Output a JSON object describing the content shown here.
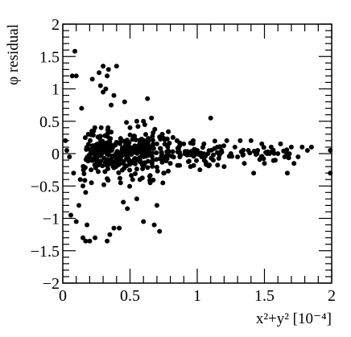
{
  "chart_data": {
    "type": "scatter",
    "title": "",
    "xlabel": "x²+y² [10⁻⁴]",
    "ylabel": "φ residual",
    "xlim": [
      0,
      2
    ],
    "ylim": [
      -2,
      2
    ],
    "xticks": [
      0,
      0.5,
      1,
      1.5,
      2
    ],
    "xtick_labels": [
      "0",
      "0.5",
      "1",
      "1.5",
      "2"
    ],
    "yticks": [
      -2,
      -1.5,
      -1,
      -0.5,
      0,
      0.5,
      1,
      1.5,
      2
    ],
    "ytick_labels": [
      "−2",
      "−1.5",
      "−1",
      "−0.5",
      "0",
      "0.5",
      "1",
      "1.5",
      "2"
    ],
    "grid": false,
    "legend": "none",
    "marker_color": "#000000",
    "series": [
      {
        "points": [
          [
            0.02,
            0.2
          ],
          [
            0.03,
            0.05
          ],
          [
            0.05,
            -0.05
          ],
          [
            0.08,
            -0.3
          ],
          [
            0.06,
            -0.95
          ],
          [
            0.1,
            -1.05
          ],
          [
            0.07,
            1.2
          ],
          [
            0.1,
            1.2
          ],
          [
            0.09,
            1.58
          ],
          [
            0.13,
            -0.4
          ],
          [
            0.12,
            -0.8
          ],
          [
            0.15,
            -0.5
          ],
          [
            0.14,
            0.7
          ],
          [
            0.17,
            -0.6
          ],
          [
            0.18,
            -1.1
          ],
          [
            0.15,
            -1.3
          ],
          [
            0.17,
            -1.35
          ],
          [
            0.2,
            -1.35
          ],
          [
            0.24,
            -1.3
          ],
          [
            0.19,
            0.3
          ],
          [
            0.21,
            -0.25
          ],
          [
            0.23,
            0.35
          ],
          [
            0.25,
            0.0
          ],
          [
            0.22,
            1.15
          ],
          [
            0.27,
            1.25
          ],
          [
            0.28,
            1.05
          ],
          [
            0.3,
            0.95
          ],
          [
            0.32,
            1.0
          ],
          [
            0.3,
            1.35
          ],
          [
            0.34,
            1.3
          ],
          [
            0.36,
            0.75
          ],
          [
            0.38,
            0.9
          ],
          [
            0.33,
            1.2
          ],
          [
            0.35,
            -1.25
          ],
          [
            0.33,
            -1.35
          ],
          [
            0.38,
            -1.15
          ],
          [
            0.42,
            -1.15
          ],
          [
            0.4,
            1.35
          ],
          [
            0.46,
            0.8
          ],
          [
            0.43,
            -0.45
          ],
          [
            0.48,
            -0.85
          ],
          [
            0.45,
            -0.75
          ],
          [
            0.5,
            0.4
          ],
          [
            0.52,
            -0.4
          ],
          [
            0.55,
            0.5
          ],
          [
            0.55,
            -0.7
          ],
          [
            0.58,
            0.2
          ],
          [
            0.6,
            -1.05
          ],
          [
            0.6,
            0.5
          ],
          [
            0.63,
            0.85
          ],
          [
            0.65,
            -0.45
          ],
          [
            0.66,
            0.55
          ],
          [
            0.68,
            -1.1
          ],
          [
            0.7,
            -0.8
          ],
          [
            0.72,
            -1.2
          ],
          [
            0.7,
            0.15
          ],
          [
            0.74,
            0.3
          ],
          [
            0.75,
            -0.3
          ],
          [
            0.78,
            0.1
          ],
          [
            0.8,
            -0.15
          ],
          [
            0.82,
            0.25
          ],
          [
            0.85,
            0.2
          ],
          [
            0.87,
            -0.05
          ],
          [
            0.9,
            0.15
          ],
          [
            0.93,
            0.0
          ],
          [
            0.95,
            -0.2
          ],
          [
            0.97,
            0.2
          ],
          [
            1.0,
            0.05
          ],
          [
            1.02,
            -0.25
          ],
          [
            1.05,
            0.15
          ],
          [
            1.08,
            0.0
          ],
          [
            1.1,
            0.55
          ],
          [
            1.12,
            -0.1
          ],
          [
            1.15,
            0.1
          ],
          [
            1.18,
            0.05
          ],
          [
            1.2,
            -0.2
          ],
          [
            1.22,
            0.2
          ],
          [
            1.25,
            0.0
          ],
          [
            1.28,
            0.1
          ],
          [
            1.3,
            -0.05
          ],
          [
            1.32,
            0.2
          ],
          [
            1.35,
            -0.15
          ],
          [
            1.38,
            0.05
          ],
          [
            1.4,
            0.2
          ],
          [
            1.42,
            -0.3
          ],
          [
            1.45,
            0.05
          ],
          [
            1.48,
            0.15
          ],
          [
            1.5,
            -0.15
          ],
          [
            1.52,
            0.0
          ],
          [
            1.55,
            0.1
          ],
          [
            1.58,
            -0.1
          ],
          [
            1.6,
            0.0
          ],
          [
            1.62,
            0.15
          ],
          [
            1.65,
            -0.05
          ],
          [
            1.67,
            -0.3
          ],
          [
            1.7,
            0.1
          ],
          [
            1.72,
            -0.15
          ],
          [
            1.75,
            -0.05
          ],
          [
            1.78,
            0.1
          ],
          [
            1.82,
            0.05
          ],
          [
            1.85,
            0.1
          ],
          [
            1.99,
            -0.3
          ],
          [
            1.99,
            0.05
          ]
        ]
      }
    ],
    "dense_region": [
      {
        "x": [
          0.15,
          0.8
        ],
        "y": [
          -0.6,
          0.6
        ],
        "n": 220
      },
      {
        "x": [
          0.2,
          0.65
        ],
        "y": [
          -0.3,
          0.35
        ],
        "n": 140
      },
      {
        "x": [
          0.8,
          1.2
        ],
        "y": [
          -0.25,
          0.25
        ],
        "n": 60
      },
      {
        "x": [
          1.2,
          1.7
        ],
        "y": [
          -0.15,
          0.15
        ],
        "n": 30
      }
    ]
  }
}
